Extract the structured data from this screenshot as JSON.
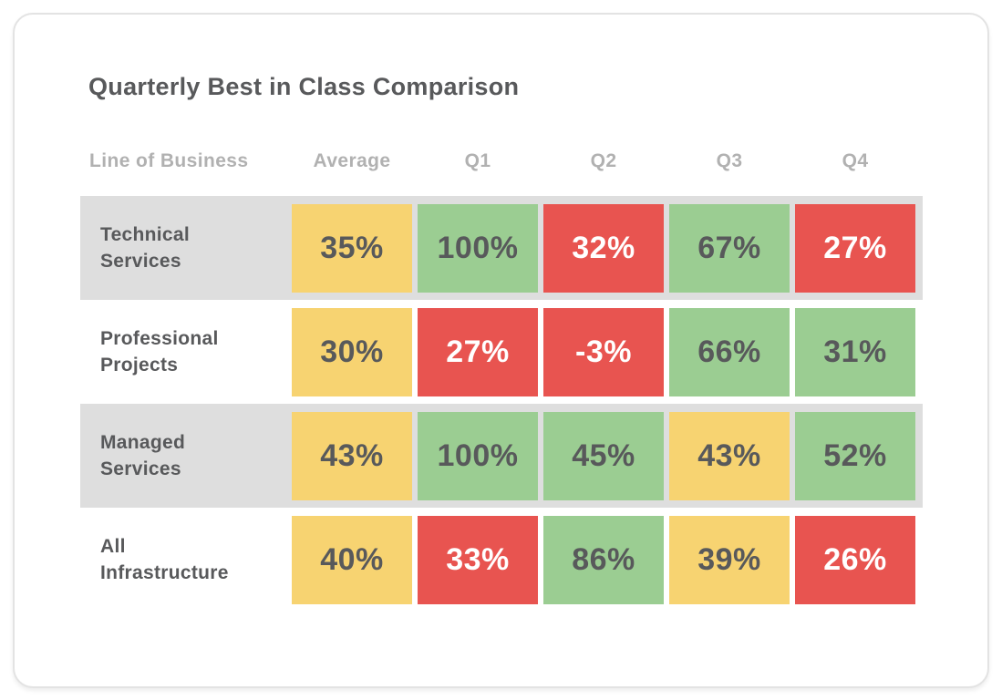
{
  "title": "Quarterly Best in Class Comparison",
  "table": {
    "columns": [
      "Line of Business",
      "Average",
      "Q1",
      "Q2",
      "Q3",
      "Q4"
    ],
    "rows": [
      {
        "label": "Technical Services",
        "cells": [
          {
            "value": "35%",
            "status": "yellow"
          },
          {
            "value": "100%",
            "status": "green"
          },
          {
            "value": "32%",
            "status": "red"
          },
          {
            "value": "67%",
            "status": "green"
          },
          {
            "value": "27%",
            "status": "red"
          }
        ]
      },
      {
        "label": "Professional Projects",
        "cells": [
          {
            "value": "30%",
            "status": "yellow"
          },
          {
            "value": "27%",
            "status": "red"
          },
          {
            "value": "-3%",
            "status": "red"
          },
          {
            "value": "66%",
            "status": "green"
          },
          {
            "value": "31%",
            "status": "green"
          }
        ]
      },
      {
        "label": "Managed Services",
        "cells": [
          {
            "value": "43%",
            "status": "yellow"
          },
          {
            "value": "100%",
            "status": "green"
          },
          {
            "value": "45%",
            "status": "green"
          },
          {
            "value": "43%",
            "status": "yellow"
          },
          {
            "value": "52%",
            "status": "green"
          }
        ]
      },
      {
        "label": "All Infrastructure",
        "cells": [
          {
            "value": "40%",
            "status": "yellow"
          },
          {
            "value": "33%",
            "status": "red"
          },
          {
            "value": "86%",
            "status": "green"
          },
          {
            "value": "39%",
            "status": "yellow"
          },
          {
            "value": "26%",
            "status": "red"
          }
        ]
      }
    ]
  },
  "chart_data": {
    "type": "table",
    "title": "Quarterly Best in Class Comparison",
    "columns": [
      "Line of Business",
      "Average",
      "Q1",
      "Q2",
      "Q3",
      "Q4"
    ],
    "value_format": "percent",
    "rows": [
      {
        "label": "Technical Services",
        "values": [
          35,
          100,
          32,
          67,
          27
        ],
        "cell_colors": [
          "yellow",
          "green",
          "red",
          "green",
          "red"
        ]
      },
      {
        "label": "Professional Projects",
        "values": [
          30,
          27,
          -3,
          66,
          31
        ],
        "cell_colors": [
          "yellow",
          "red",
          "red",
          "green",
          "green"
        ]
      },
      {
        "label": "Managed Services",
        "values": [
          43,
          100,
          45,
          43,
          52
        ],
        "cell_colors": [
          "yellow",
          "green",
          "green",
          "yellow",
          "green"
        ]
      },
      {
        "label": "All Infrastructure",
        "values": [
          40,
          33,
          86,
          39,
          26
        ],
        "cell_colors": [
          "yellow",
          "red",
          "green",
          "yellow",
          "red"
        ]
      }
    ],
    "legend": "none",
    "row_striping": "alternating gray starting at first data row"
  },
  "colors": {
    "yellow": "#F7D371",
    "green": "#9BCD92",
    "red": "#E85450",
    "stripe": "#DEDEDE",
    "text_dark": "#58595B",
    "text_header": "#B1B1B1",
    "card_border": "#E3E3E3"
  }
}
